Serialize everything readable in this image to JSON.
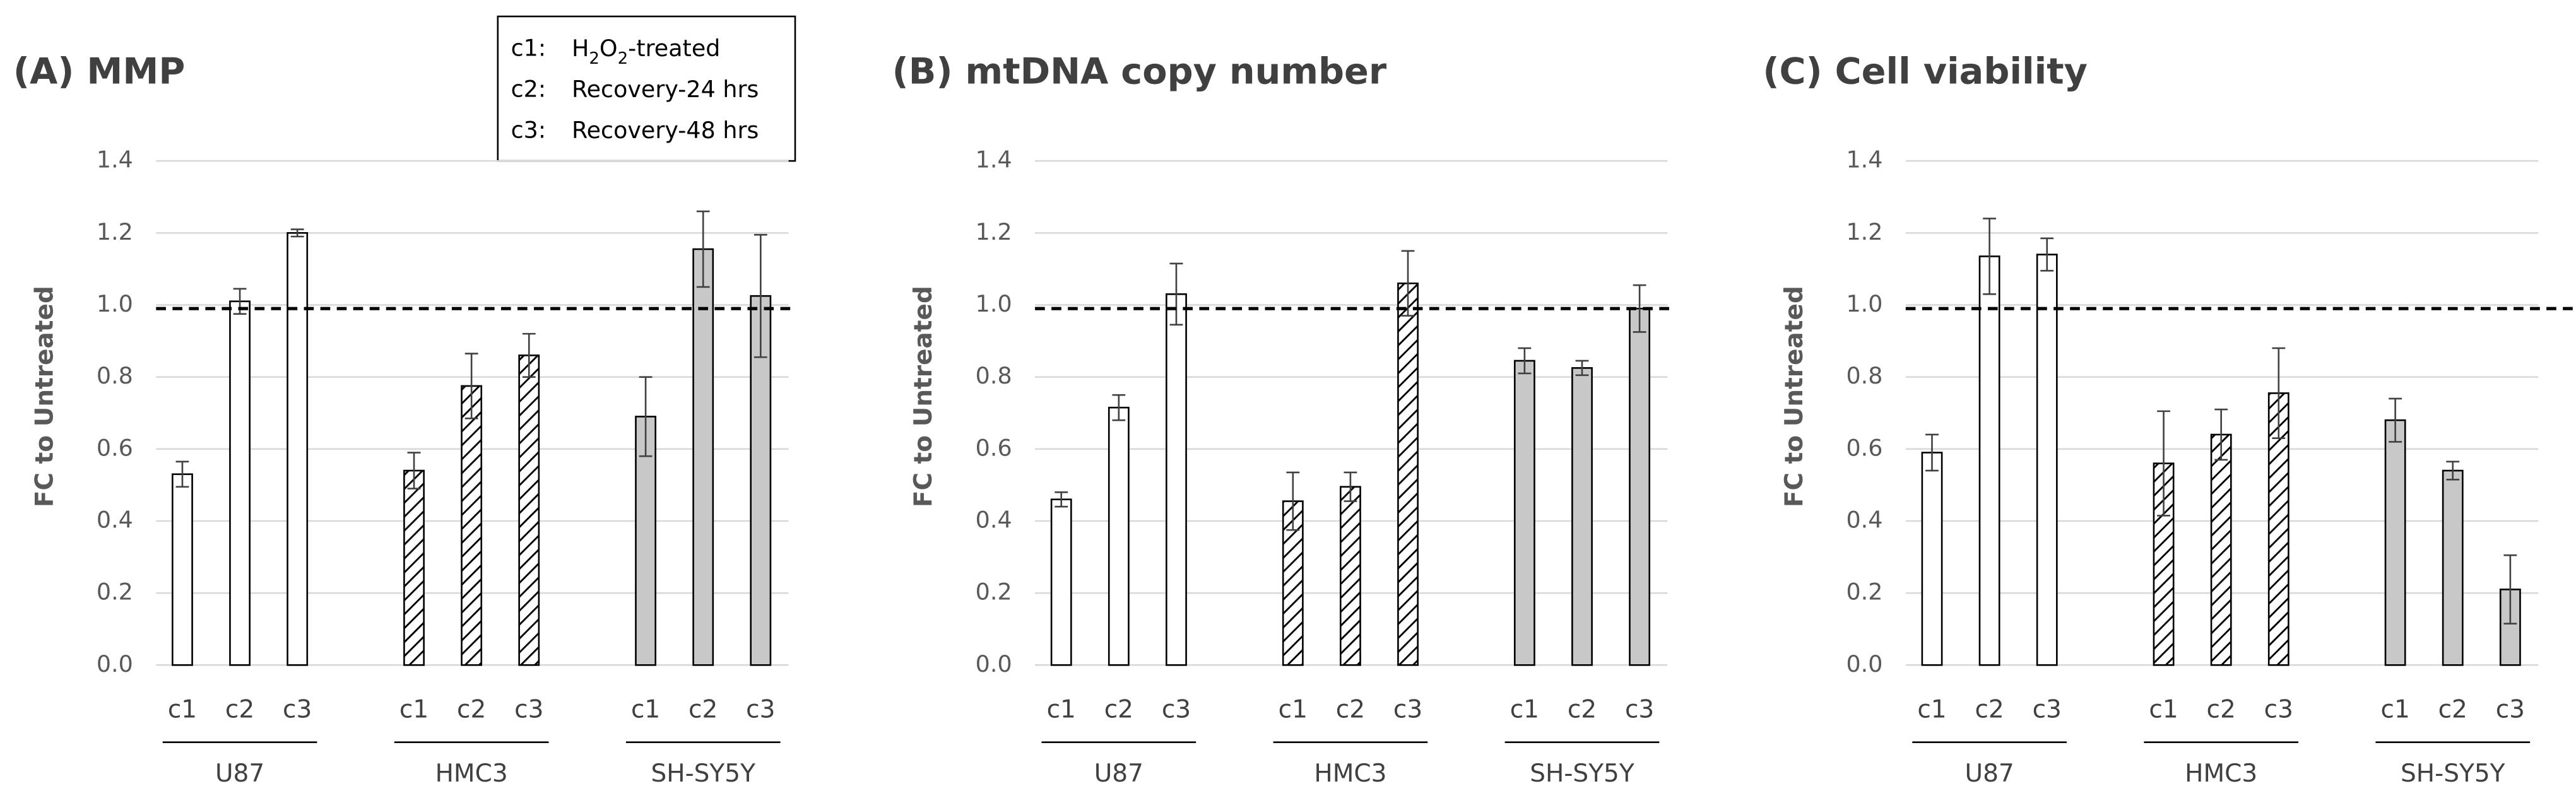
{
  "legend": {
    "entries": [
      {
        "key": "c1:",
        "label": [
          {
            "text": "H"
          },
          {
            "text": "2",
            "sub": true
          },
          {
            "text": "O"
          },
          {
            "text": "2",
            "sub": true
          },
          {
            "text": "-treated"
          }
        ]
      },
      {
        "key": "c2:",
        "label": [
          {
            "text": "Recovery-24 hrs"
          }
        ]
      },
      {
        "key": "c3:",
        "label": [
          {
            "text": "Recovery-48 hrs"
          }
        ]
      }
    ]
  },
  "chart_data": [
    {
      "type": "bar",
      "title": "(A) MMP",
      "y_label": "FC to Untreated",
      "categories": [
        "c1",
        "c2",
        "c3"
      ],
      "series": [
        {
          "name": "U87",
          "pattern": "none",
          "color": "#ffffff",
          "values": [
            0.53,
            1.01,
            1.2
          ],
          "errors": [
            0.035,
            0.035,
            0.01
          ]
        },
        {
          "name": "HMC3",
          "pattern": "hatch",
          "color": "#ffffff",
          "values": [
            0.54,
            0.775,
            0.86
          ],
          "errors": [
            0.05,
            0.09,
            0.06
          ]
        },
        {
          "name": "SH-SY5Y",
          "pattern": "solid",
          "color": "#c8c8c8",
          "values": [
            0.69,
            1.155,
            1.025
          ],
          "errors": [
            0.11,
            0.105,
            0.17
          ]
        }
      ],
      "reference_line": 0.99,
      "ylim": [
        0,
        1.4
      ],
      "yticks": [
        {
          "value": 0,
          "label": "0.0"
        },
        0.2,
        0.4,
        0.6,
        0.8,
        {
          "value": 1,
          "label": "1.0"
        },
        1.2,
        1.4
      ],
      "grid": true
    },
    {
      "type": "bar",
      "title": "(B) mtDNA copy number",
      "y_label": "FC to Untreated",
      "categories": [
        "c1",
        "c2",
        "c3"
      ],
      "series": [
        {
          "name": "U87",
          "pattern": "none",
          "color": "#ffffff",
          "values": [
            0.46,
            0.715,
            1.03
          ],
          "errors": [
            0.02,
            0.035,
            0.085
          ]
        },
        {
          "name": "HMC3",
          "pattern": "hatch",
          "color": "#ffffff",
          "values": [
            0.455,
            0.495,
            1.06
          ],
          "errors": [
            0.08,
            0.04,
            0.09
          ]
        },
        {
          "name": "SH-SY5Y",
          "pattern": "solid",
          "color": "#c8c8c8",
          "values": [
            0.845,
            0.825,
            0.99
          ],
          "errors": [
            0.035,
            0.02,
            0.065
          ]
        }
      ],
      "reference_line": 0.99,
      "ylim": [
        0,
        1.4
      ],
      "yticks": [
        {
          "value": 0,
          "label": "0.0"
        },
        0.2,
        0.4,
        0.6,
        0.8,
        {
          "value": 1,
          "label": "1.0"
        },
        1.2,
        1.4
      ],
      "grid": true
    },
    {
      "type": "bar",
      "title": "(C) Cell viability",
      "y_label": "FC to Untreated",
      "categories": [
        "c1",
        "c2",
        "c3"
      ],
      "series": [
        {
          "name": "U87",
          "pattern": "none",
          "color": "#ffffff",
          "values": [
            0.59,
            1.135,
            1.14
          ],
          "errors": [
            0.05,
            0.105,
            0.045
          ]
        },
        {
          "name": "HMC3",
          "pattern": "hatch",
          "color": "#ffffff",
          "values": [
            0.56,
            0.64,
            0.755
          ],
          "errors": [
            0.145,
            0.07,
            0.125
          ]
        },
        {
          "name": "SH-SY5Y",
          "pattern": "solid",
          "color": "#c8c8c8",
          "values": [
            0.68,
            0.54,
            0.21
          ],
          "errors": [
            0.06,
            0.025,
            0.095
          ]
        }
      ],
      "reference_line": 0.99,
      "ylim": [
        0,
        1.4
      ],
      "yticks": [
        {
          "value": 0,
          "label": "0.0"
        },
        0.2,
        0.4,
        0.6,
        0.8,
        {
          "value": 1,
          "label": "1.0"
        },
        1.2,
        1.4
      ],
      "grid": true
    }
  ]
}
